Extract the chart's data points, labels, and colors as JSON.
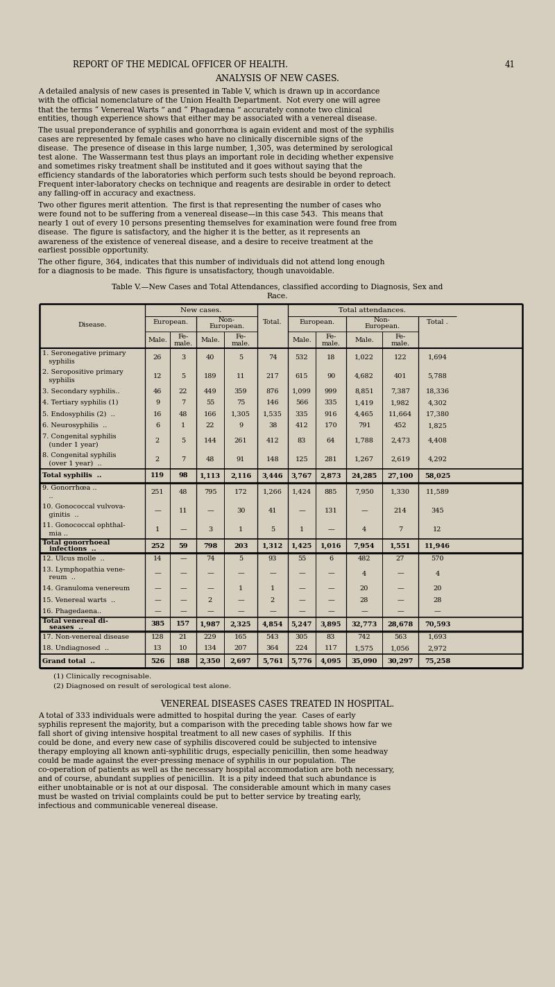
{
  "bg_color": "#d6cfbf",
  "page_title": "REPORT OF THE MEDICAL OFFICER OF HEALTH.",
  "page_number": "41",
  "section_title": "ANALYSIS OF NEW CASES.",
  "body_paragraphs": [
    "    A detailed analysis of new cases is presented in Table V, which is drawn up in accordance with the official nomenclature of the Union Health Department.  Not every one will agree that the terms “ Venereal Warts ” and “ Phagadæna ” accurately connote two clinical entities, though experience shows that either may be associated with a venereal disease.",
    "    The usual preponderance of syphilis and gonorrhœa is again evident and most of the syphilis cases are represented by female cases who have no clinically discernible signs of the disease.  The presence of disease in this large number, 1,305, was determined by serological test alone.  The Wassermann test thus plays an important role in deciding whether expensive and sometimes risky treatment shall be instituted and it goes without saying that the efficiency standards of the laboratories which perform such tests should be beyond reproach.  Frequent inter-laboratory checks on technique and reagents are desirable in order to detect any falling-off in accuracy and exactness.",
    "    Two other figures merit attention.  The first is that representing the number of cases who were found not to be suffering from a venereal disease—in this case 543.  This means that nearly 1 out of every 10 persons presenting themselves for examination were found free from disease.  The figure is satisfactory, and the higher it is the better, as it represents an awareness of the existence of venereal disease, and a desire to receive treatment at the earliest possible opportunity.",
    "    The other figure, 364, indicates that this number of individuals did not attend long enough for a diagnosis to be made.  This figure is unsatisfactory, though unavoidable."
  ],
  "table_caption_line1": "Table V.—New Cases and Total Attendances, classified according to Diagnosis, Sex and",
  "table_caption_line2": "Race.",
  "rows": [
    {
      "label1": "1. Seronegative primary",
      "label2": "   syphilis",
      "data": [
        "26",
        "3",
        "40",
        "5",
        "74",
        "532",
        "18",
        "1,022",
        "122",
        "1,694"
      ],
      "bold": false,
      "italic_label": false
    },
    {
      "label1": "2. Seropositive primary",
      "label2": "   syphilis",
      "data": [
        "12",
        "5",
        "189",
        "11",
        "217",
        "615",
        "90",
        "4,682",
        "401",
        "5,788"
      ],
      "bold": false,
      "italic_label": false
    },
    {
      "label1": "3. Secondary syphilis..",
      "label2": "",
      "data": [
        "46",
        "22",
        "449",
        "359",
        "876",
        "1,099",
        "999",
        "8,851",
        "7,387",
        "18,336"
      ],
      "bold": false,
      "italic_label": false
    },
    {
      "label1": "4. Tertiary syphilis (1)",
      "label2": "",
      "data": [
        "9",
        "7",
        "55",
        "75",
        "146",
        "566",
        "335",
        "1,419",
        "1,982",
        "4,302"
      ],
      "bold": false,
      "italic_label": false
    },
    {
      "label1": "5. Endosyphilis (2)  ..",
      "label2": "",
      "data": [
        "16",
        "48",
        "166",
        "1,305",
        "1,535",
        "335",
        "916",
        "4,465",
        "11,664",
        "17,380"
      ],
      "bold": false,
      "italic_label": false
    },
    {
      "label1": "6. Neurosyphilis  ..",
      "label2": "",
      "data": [
        "6",
        "1",
        "22",
        "9",
        "38",
        "412",
        "170",
        "791",
        "452",
        "1,825"
      ],
      "bold": false,
      "italic_label": false
    },
    {
      "label1": "7. Congenital syphilis",
      "label2": "   (under 1 year)",
      "data": [
        "2",
        "5",
        "144",
        "261",
        "412",
        "83",
        "64",
        "1,788",
        "2,473",
        "4,408"
      ],
      "bold": false,
      "italic_label": false
    },
    {
      "label1": "8. Congenital syphilis",
      "label2": "   (over 1 year)  ..",
      "data": [
        "2",
        "7",
        "48",
        "91",
        "148",
        "125",
        "281",
        "1,267",
        "2,619",
        "4,292"
      ],
      "bold": false,
      "italic_label": false
    },
    {
      "label1": "Total syphilis  ..",
      "label2": "",
      "data": [
        "119",
        "98",
        "1,113",
        "2,116",
        "3,446",
        "3,767",
        "2,873",
        "24,285",
        "27,100",
        "58,025"
      ],
      "bold": true,
      "italic_label": false,
      "sep_before": true,
      "sep_after": true
    },
    {
      "label1": "9. Gonorrhœa ..",
      "label2": "   ..",
      "data": [
        "251",
        "48",
        "795",
        "172",
        "1,266",
        "1,424",
        "885",
        "7,950",
        "1,330",
        "11,589"
      ],
      "bold": false,
      "italic_label": false,
      "sep_before": true
    },
    {
      "label1": "10. Gonococcal vulvova-",
      "label2": "   ginitis  ..",
      "data": [
        "—",
        "11",
        "—",
        "30",
        "41",
        "—",
        "131",
        "—",
        "214",
        "345"
      ],
      "bold": false,
      "italic_label": false
    },
    {
      "label1": "11. Gonococcal ophthal-",
      "label2": "   mia ..",
      "data": [
        "1",
        "—",
        "3",
        "1",
        "5",
        "1",
        "—",
        "4",
        "7",
        "12"
      ],
      "bold": false,
      "italic_label": false
    },
    {
      "label1": "Total gonorrhoeal",
      "label2": "   infections  ..",
      "data": [
        "252",
        "59",
        "798",
        "203",
        "1,312",
        "1,425",
        "1,016",
        "7,954",
        "1,551",
        "11,946"
      ],
      "bold": true,
      "italic_label": false,
      "sep_before": true,
      "sep_after": true
    },
    {
      "label1": "12. Ulcus molle  ..",
      "label2": "",
      "data": [
        "14",
        "—",
        "74",
        "5",
        "93",
        "55",
        "6",
        "482",
        "27",
        "570"
      ],
      "bold": false,
      "italic_label": false,
      "sep_before": true
    },
    {
      "label1": "13. Lymphopathia vene-",
      "label2": "   reum  ..",
      "data": [
        "—",
        "—",
        "—",
        "—",
        "—",
        "—",
        "—",
        "4",
        "—",
        "4"
      ],
      "bold": false,
      "italic_label": false
    },
    {
      "label1": "14. Granuloma venereum",
      "label2": "",
      "data": [
        "—",
        "—",
        "—",
        "1",
        "1",
        "—",
        "—",
        "20",
        "—",
        "20"
      ],
      "bold": false,
      "italic_label": false
    },
    {
      "label1": "15. Venereal warts  ..",
      "label2": "",
      "data": [
        "—",
        "—",
        "2",
        "—",
        "2",
        "—",
        "—",
        "28",
        "—",
        "28"
      ],
      "bold": false,
      "italic_label": false
    },
    {
      "label1": "16. Phagedaena..",
      "label2": "",
      "data": [
        "—",
        "—",
        "—",
        "—",
        "—",
        "—",
        "—",
        "—",
        "—",
        "—"
      ],
      "bold": false,
      "italic_label": false
    },
    {
      "label1": "Total venereal di-",
      "label2": "   seases  ..",
      "data": [
        "385",
        "157",
        "1,987",
        "2,325",
        "4,854",
        "5,247",
        "3,895",
        "32,773",
        "28,678",
        "70,593"
      ],
      "bold": true,
      "italic_label": false,
      "sep_before": true,
      "sep_after": true
    },
    {
      "label1": "17. Non-venereal disease",
      "label2": "",
      "data": [
        "128",
        "21",
        "229",
        "165",
        "543",
        "305",
        "83",
        "742",
        "563",
        "1,693"
      ],
      "bold": false,
      "italic_label": false,
      "sep_before": true
    },
    {
      "label1": "18. Undiagnosed  ..",
      "label2": "",
      "data": [
        "13",
        "10",
        "134",
        "207",
        "364",
        "224",
        "117",
        "1,575",
        "1,056",
        "2,972"
      ],
      "bold": false,
      "italic_label": false
    },
    {
      "label1": "Grand total  ..",
      "label2": "",
      "data": [
        "526",
        "188",
        "2,350",
        "2,697",
        "5,761",
        "5,776",
        "4,095",
        "35,090",
        "30,297",
        "75,258"
      ],
      "bold": true,
      "italic_label": false,
      "sep_before": true,
      "sep_after": true
    }
  ],
  "footnotes": [
    "(1) Clinically recognisable.",
    "(2) Diagnosed on result of serological test alone."
  ],
  "vd_section_title": "VENEREAL DISEASES CASES TREATED IN HOSPITAL.",
  "vd_paragraph": "    A total of 333 individuals were admitted to hospital during the year.  Cases of early syphilis represent the majority, but a comparison with the preceding table shows how far we fall short of giving intensive hospital treatment to all new cases of syphilis.  If this could be done, and every new case of syphilis discovered could be subjected to intensive therapy employing all known anti-syphilitic drugs, especially penicillin, then some headway could be made against the ever-pressing menace of syphilis in our population.  The co-operation of patients as well as the necessary hospital accommodation are both necessary, and of course, abundant supplies of penicillin.  It is a pity indeed that such abundance is either unobtainable or is not at our disposal.  The considerable amount which in many cases must be wasted on trivial complaints could be put to better service by treating early, infectious and communicable venereal disease."
}
